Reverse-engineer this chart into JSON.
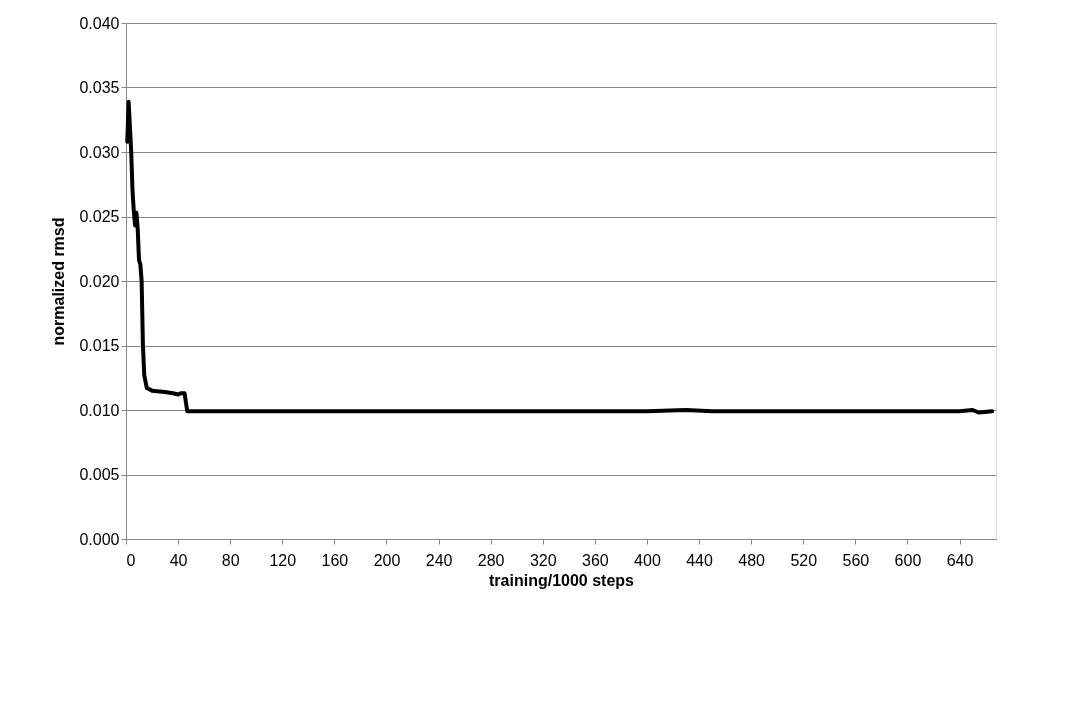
{
  "chart_data": {
    "type": "line",
    "xlabel": "training/1000 steps",
    "ylabel": "normalized rmsd",
    "x": [
      1,
      2,
      3,
      4,
      5,
      6,
      7,
      8,
      9,
      10,
      11,
      12,
      13,
      14,
      16,
      20,
      30,
      36,
      40,
      42,
      45,
      47,
      60,
      100,
      150,
      200,
      250,
      300,
      350,
      400,
      430,
      450,
      500,
      550,
      600,
      640,
      650,
      655,
      665
    ],
    "series": [
      {
        "color": "#000000",
        "values": [
          0.0308,
          0.0339,
          0.032,
          0.03,
          0.027,
          0.0254,
          0.0243,
          0.0253,
          0.024,
          0.0216,
          0.0213,
          0.02,
          0.015,
          0.0127,
          0.0117,
          0.0115,
          0.0114,
          0.0113,
          0.0112,
          0.0113,
          0.0113,
          0.0099,
          0.0099,
          0.0099,
          0.0099,
          0.0099,
          0.0099,
          0.0099,
          0.0099,
          0.0099,
          0.01,
          0.0099,
          0.0099,
          0.0099,
          0.0099,
          0.0099,
          0.01,
          0.0098,
          0.0099
        ]
      }
    ],
    "xlim": [
      0,
      668
    ],
    "xticks": [
      0,
      40,
      80,
      120,
      160,
      200,
      240,
      280,
      320,
      360,
      400,
      440,
      480,
      520,
      560,
      600,
      640
    ],
    "ylim": [
      0,
      0.04
    ],
    "yticks": [
      {
        "value": 0,
        "label": "0.000"
      },
      0.005,
      {
        "value": 0.01,
        "label": "0.010"
      },
      0.015,
      {
        "value": 0.02,
        "label": "0.020"
      },
      0.025,
      {
        "value": 0.03,
        "label": "0.030"
      },
      0.035,
      {
        "value": 0.04,
        "label": "0.040"
      }
    ],
    "grid": "y",
    "legend": false,
    "marker": "none",
    "line_style": "solid"
  }
}
